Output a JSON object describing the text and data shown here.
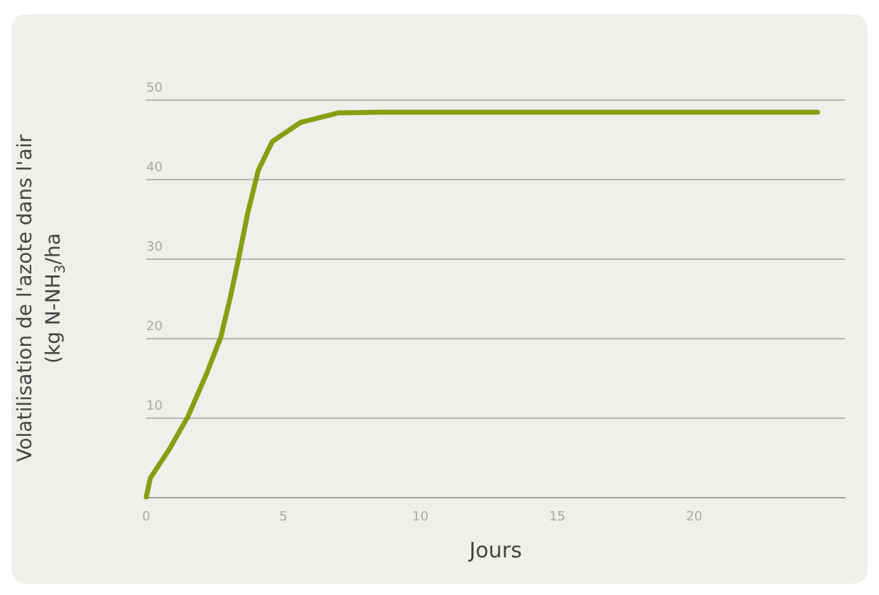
{
  "chart_data": {
    "type": "line",
    "xlabel": "Jours",
    "ylabel": "Volatilisation de l'azote dans l'air\n(kg N-NH$_{3}$/ha",
    "x": [
      0,
      0.15,
      0.84,
      1.52,
      2.2,
      2.72,
      3.06,
      3.37,
      3.71,
      4.09,
      4.6,
      5.63,
      7.0,
      8.5,
      24.5
    ],
    "series": [
      {
        "color": "#84a012",
        "values": [
          0,
          2.4,
          6,
          10.1,
          15.5,
          20.1,
          25,
          30,
          35.8,
          41.1,
          44.7,
          47.1,
          48.3,
          48.4,
          48.4
        ]
      }
    ],
    "xlim": [
      0,
      25.5
    ],
    "xticks": [
      0,
      5,
      10,
      15,
      20
    ],
    "ylim": [
      0,
      50
    ],
    "yticks": [
      10,
      20,
      30,
      40,
      50
    ],
    "grid": "y",
    "marker": "none",
    "line_style": "solid"
  }
}
